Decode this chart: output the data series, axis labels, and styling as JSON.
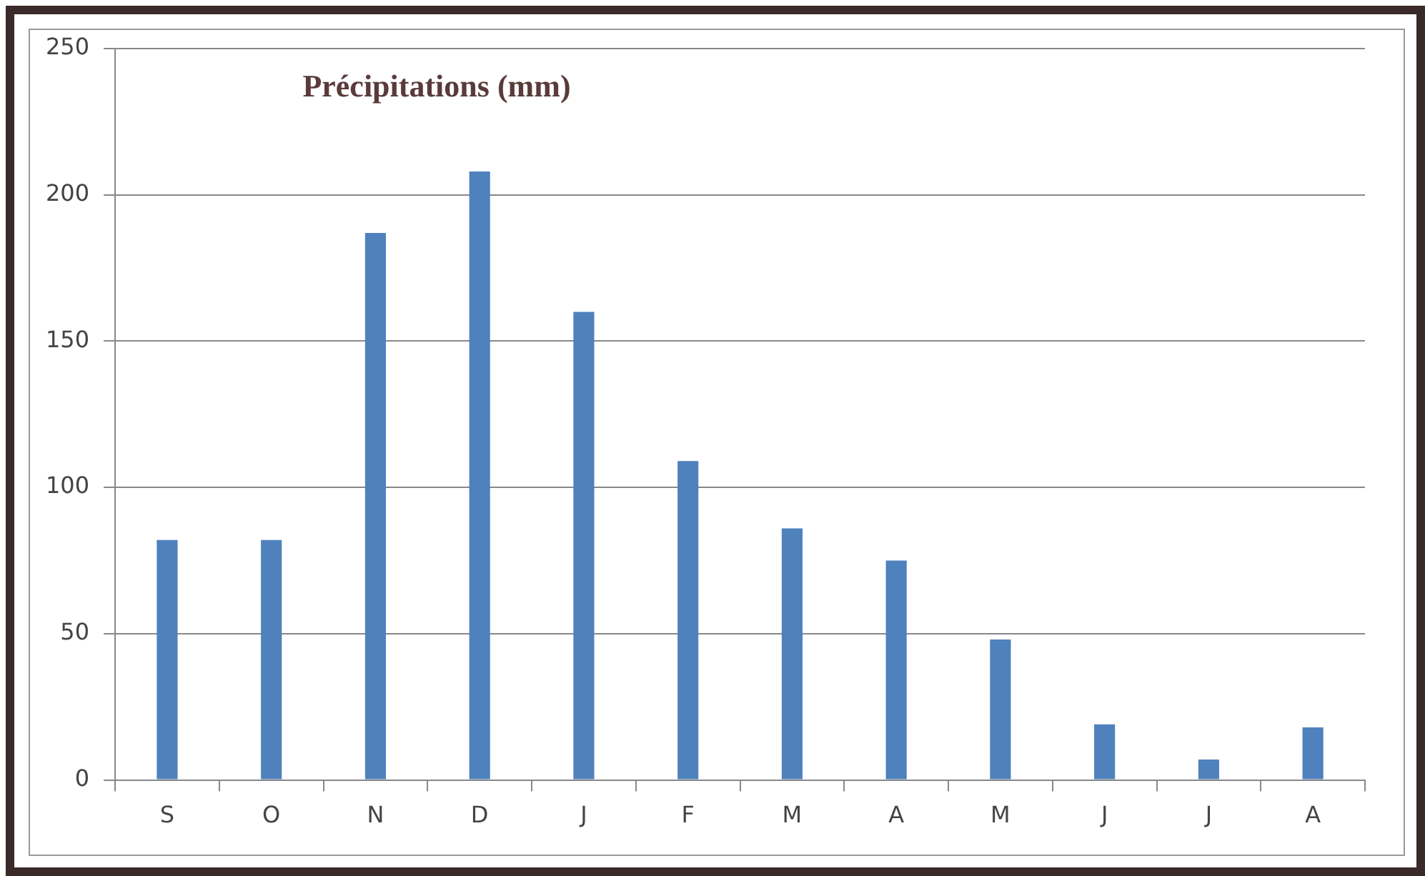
{
  "chart_data": {
    "type": "bar",
    "title": "Précipitations (mm)",
    "categories": [
      "S",
      "O",
      "N",
      "D",
      "J",
      "F",
      "M",
      "A",
      "M",
      "J",
      "J",
      "A"
    ],
    "values": [
      82,
      82,
      187,
      208,
      160,
      109,
      86,
      75,
      48,
      19,
      7,
      18
    ],
    "color": "#4f81bd",
    "ylim": [
      0,
      250
    ],
    "yticks": [
      0,
      50,
      100,
      150,
      200,
      250
    ],
    "grid": "y"
  }
}
